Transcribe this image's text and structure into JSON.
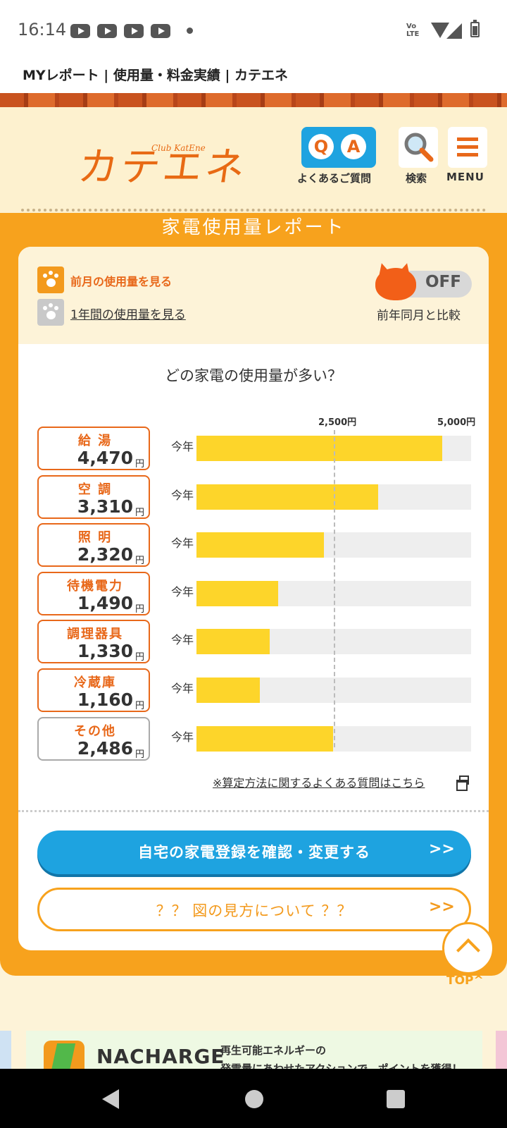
{
  "status_bar": {
    "time": "16:14",
    "notification_icons": [
      "youtube-icon",
      "youtube-icon",
      "youtube-icon",
      "youtube-icon",
      "dot-icon"
    ],
    "network": "Vo LTE",
    "icons": [
      "wifi-icon",
      "signal-icon",
      "battery-icon"
    ]
  },
  "page_title": "MYレポート | 使用量・料金実績 | カテエネ",
  "header": {
    "logo_text": "カテエネ",
    "logo_sub": "Club KatEne",
    "qa": {
      "q": "Q",
      "a": "A",
      "label": "よくあるご質問"
    },
    "search_label": "検索",
    "menu_label": "MENU"
  },
  "section_title": "家電使用量レポート",
  "card": {
    "prev_month_link": "前月の使用量を見る",
    "one_year_link": "1年間の使用量を見る",
    "toggle_state": "OFF",
    "compare_label": "前年同月と比較",
    "question": "どの家電の使用量が多い？",
    "faq_link": "※算定方法に関するよくある質問はこちら"
  },
  "chart_data": {
    "type": "bar",
    "orientation": "horizontal",
    "title": "どの家電の使用量が多い？",
    "axis_ticks": [
      "2,500円",
      "5,000円"
    ],
    "xlim": [
      0,
      5000
    ],
    "row_label": "今年",
    "unit": "円",
    "categories": [
      "給湯",
      "空調",
      "照明",
      "待機電力",
      "調理器具",
      "冷蔵庫",
      "その他"
    ],
    "values": [
      4470,
      3310,
      2320,
      1490,
      1330,
      1160,
      2486
    ],
    "value_labels": [
      "4,470",
      "3,310",
      "2,320",
      "1,490",
      "1,330",
      "1,160",
      "2,486"
    ],
    "category_labels": [
      "給 湯",
      "空 調",
      "照 明",
      "待機電力",
      "調理器具",
      "冷蔵庫",
      "その他"
    ],
    "grid_reference": 2500,
    "colors": {
      "bar": "#fdd52a",
      "track": "#eeeeee"
    }
  },
  "buttons": {
    "register": "自宅の家電登録を確認・変更する",
    "howto": "？？ 図の見方について ？？",
    "chevrons": ">>",
    "top_label": "TOP"
  },
  "banner": {
    "name": "NACHARGE",
    "line1": "再生可能エネルギーの",
    "line2": "発電量にあわせたアクションで、ポイントを獲得！"
  },
  "colors": {
    "accent": "#f7a21d",
    "brand": "#e86a14",
    "link_blue": "#1ea3e0"
  }
}
